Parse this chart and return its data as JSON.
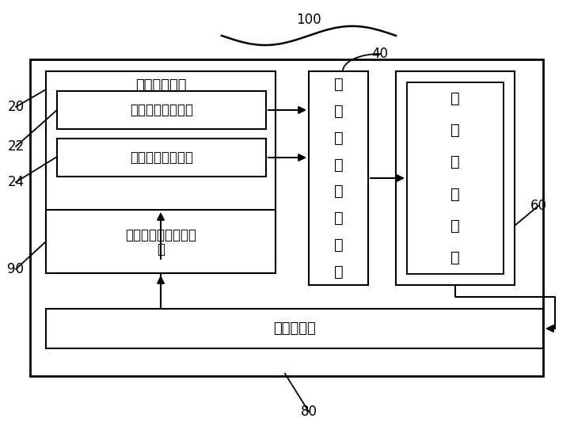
{
  "fig_width": 7.25,
  "fig_height": 5.33,
  "dpi": 100,
  "bg_color": "#ffffff",
  "box_color": "#000000",
  "label_100": "100",
  "label_40": "40",
  "label_20": "20",
  "label_22": "22",
  "label_24": "24",
  "label_60": "60",
  "label_80": "80",
  "label_90": "90",
  "text_crystal_gen": "晶体生成模块",
  "text_box22": "人工晶体生成模块",
  "text_box24": "自动晶体生成模块",
  "text_box90_l1": "晶体演化实时监控模",
  "text_box90_l2": "块",
  "text_box40_l1": "晶",
  "text_box40_l2": "体",
  "text_box40_l3": "能",
  "text_box40_l4": "量",
  "text_box40_l5": "计",
  "text_box40_l6": "算",
  "text_box40_l7": "模",
  "text_box40_l8": "块",
  "text_box60_l1": "晶",
  "text_box60_l2": "体",
  "text_box60_l3": "演",
  "text_box60_l4": "化",
  "text_box60_l5": "模",
  "text_box60_l6": "块",
  "text_db": "晶体数据库",
  "font_size_title": 13,
  "font_size_box": 12,
  "font_size_label": 12,
  "font_size_vert": 14,
  "lw_outer": 2.0,
  "lw_inner": 1.5,
  "lw_arrow": 1.5
}
